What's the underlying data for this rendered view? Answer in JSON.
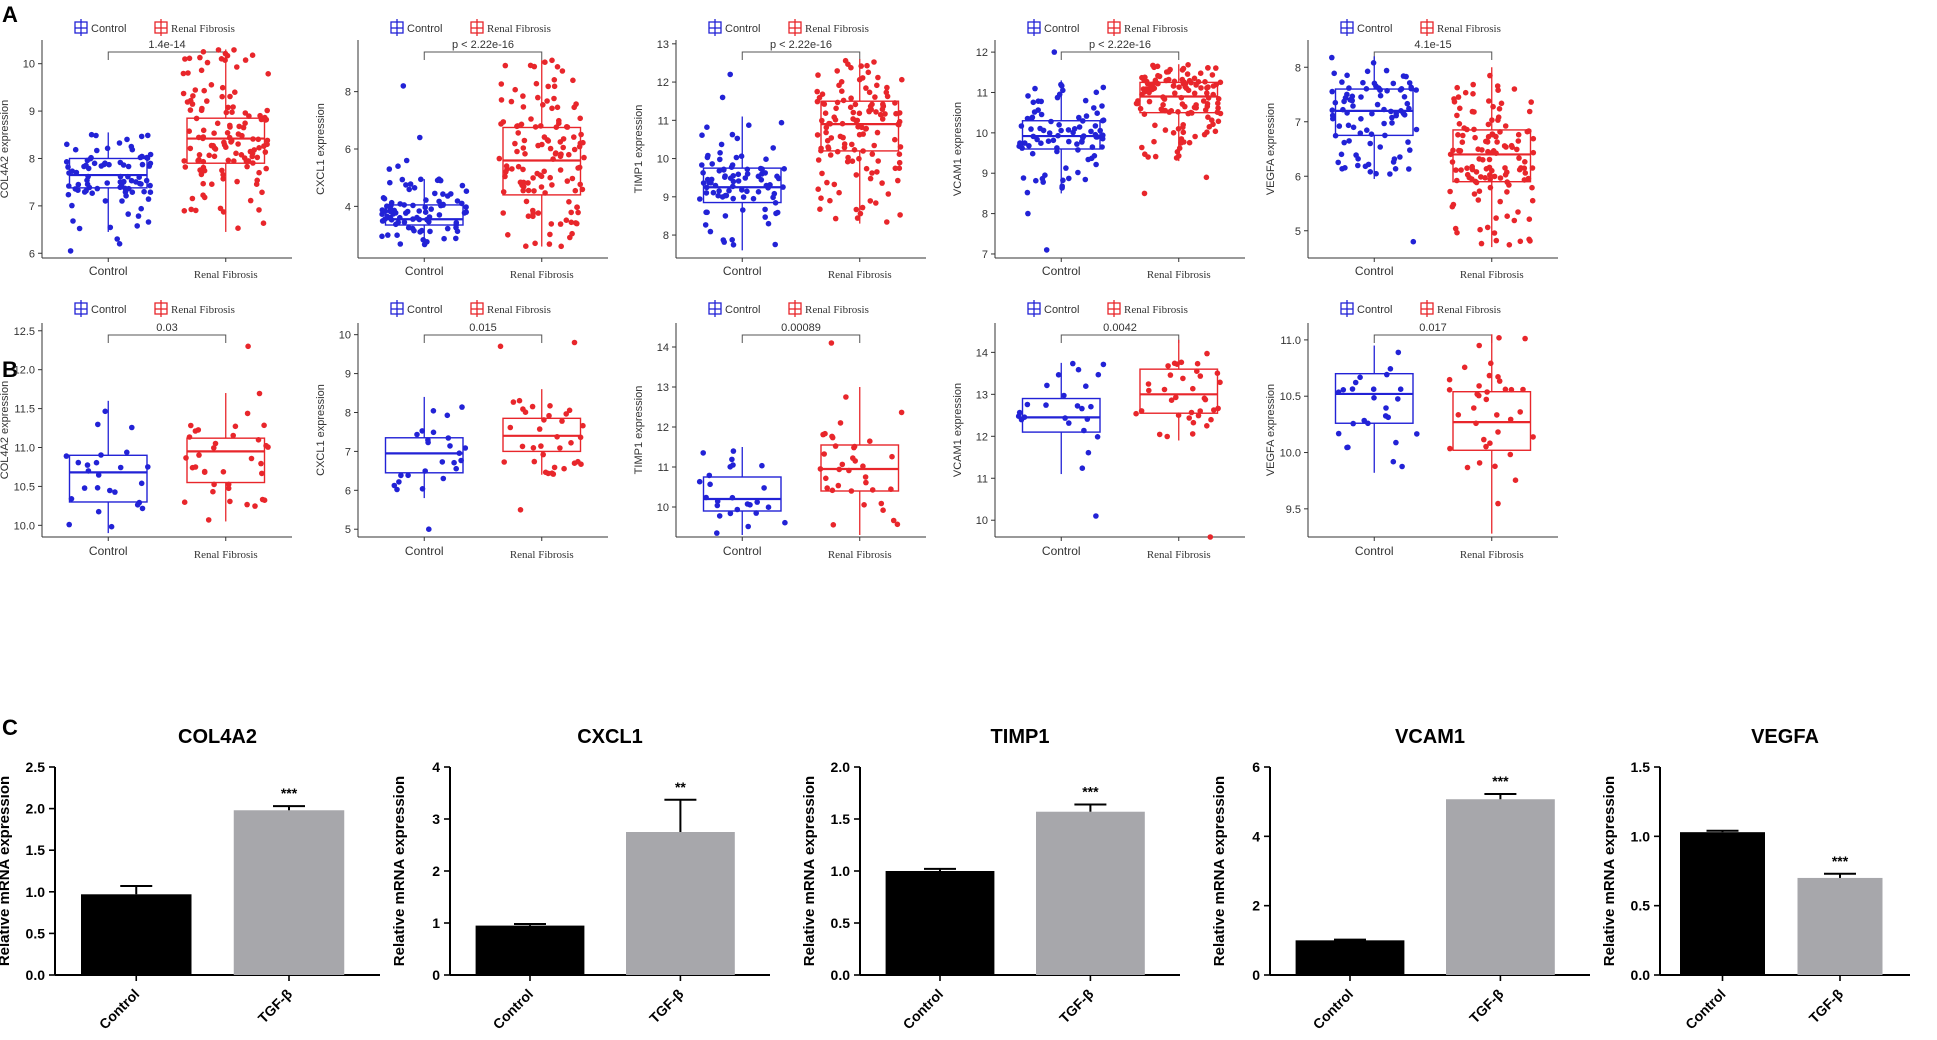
{
  "panel_labels": [
    "A",
    "B",
    "C"
  ],
  "colors": {
    "control": "#2222d6",
    "fibrosis": "#e8262b",
    "bar_control": "#000000",
    "bar_tgf": "#a7a7ab",
    "axis": "#333333"
  },
  "chart_data": [
    {
      "type": "box",
      "panel": "A",
      "gene": "COL4A2",
      "ylabel": "COL4A2 expression",
      "legend": [
        "Control",
        "Renal Fibrosis"
      ],
      "categories": [
        "Control",
        "Renal Fibrosis"
      ],
      "pvalue": "1.4e-14",
      "ylim": [
        5.9,
        10.5
      ],
      "yticks": [
        6,
        7,
        8,
        9,
        10
      ],
      "series": [
        {
          "name": "Control",
          "n": 90,
          "q1": 7.38,
          "median": 7.65,
          "q3": 8.0,
          "wlo": 6.45,
          "whi": 8.55,
          "outliers": [
            6.3,
            6.2,
            6.05
          ]
        },
        {
          "name": "Renal Fibrosis",
          "n": 130,
          "q1": 7.9,
          "median": 8.42,
          "q3": 8.85,
          "wlo": 6.45,
          "whi": 10.3,
          "outliers": []
        }
      ]
    },
    {
      "type": "box",
      "panel": "A",
      "gene": "CXCL1",
      "ylabel": "CXCL1 expression",
      "legend": [
        "Control",
        "Renal Fibrosis"
      ],
      "categories": [
        "Control",
        "Renal Fibrosis"
      ],
      "pvalue": "p < 2.22e-16",
      "ylim": [
        2.2,
        9.8
      ],
      "yticks": [
        4,
        6,
        8
      ],
      "series": [
        {
          "name": "Control",
          "n": 90,
          "q1": 3.35,
          "median": 3.55,
          "q3": 4.05,
          "wlo": 2.65,
          "whi": 4.95,
          "outliers": [
            8.2,
            6.4,
            5.6,
            5.4,
            5.3
          ]
        },
        {
          "name": "Renal Fibrosis",
          "n": 130,
          "q1": 4.4,
          "median": 5.6,
          "q3": 6.75,
          "wlo": 2.6,
          "whi": 9.1,
          "outliers": []
        }
      ]
    },
    {
      "type": "box",
      "panel": "A",
      "gene": "TIMP1",
      "ylabel": "TIMP1 expression",
      "legend": [
        "Control",
        "Renal Fibrosis"
      ],
      "categories": [
        "Control",
        "Renal Fibrosis"
      ],
      "pvalue": "p < 2.22e-16",
      "ylim": [
        7.4,
        13.1
      ],
      "yticks": [
        8,
        9,
        10,
        11,
        12,
        13
      ],
      "series": [
        {
          "name": "Control",
          "n": 90,
          "q1": 8.85,
          "median": 9.25,
          "q3": 9.75,
          "wlo": 7.6,
          "whi": 11.1,
          "outliers": [
            12.2,
            11.6
          ]
        },
        {
          "name": "Renal Fibrosis",
          "n": 130,
          "q1": 10.2,
          "median": 10.9,
          "q3": 11.5,
          "wlo": 8.3,
          "whi": 12.6,
          "outliers": []
        }
      ]
    },
    {
      "type": "box",
      "panel": "A",
      "gene": "VCAM1",
      "ylabel": "VCAM1 expression",
      "legend": [
        "Control",
        "Renal Fibrosis"
      ],
      "categories": [
        "Control",
        "Renal Fibrosis"
      ],
      "pvalue": "p < 2.22e-16",
      "ylim": [
        6.9,
        12.3
      ],
      "yticks": [
        7,
        8,
        9,
        10,
        11,
        12
      ],
      "series": [
        {
          "name": "Control",
          "n": 90,
          "q1": 9.6,
          "median": 9.92,
          "q3": 10.3,
          "wlo": 8.5,
          "whi": 11.3,
          "outliers": [
            7.1,
            8.0,
            12.0
          ]
        },
        {
          "name": "Renal Fibrosis",
          "n": 130,
          "q1": 10.5,
          "median": 10.9,
          "q3": 11.25,
          "wlo": 9.3,
          "whi": 11.7,
          "outliers": [
            8.5,
            8.9
          ]
        }
      ]
    },
    {
      "type": "box",
      "panel": "A",
      "gene": "VEGFA",
      "ylabel": "VEGFA expression",
      "legend": [
        "Control",
        "Renal Fibrosis"
      ],
      "categories": [
        "Control",
        "Renal Fibrosis"
      ],
      "pvalue": "4.1e-15",
      "ylim": [
        4.5,
        8.5
      ],
      "yticks": [
        5,
        6,
        7,
        8
      ],
      "series": [
        {
          "name": "Control",
          "n": 90,
          "q1": 6.75,
          "median": 7.2,
          "q3": 7.6,
          "wlo": 5.95,
          "whi": 8.2,
          "outliers": [
            4.8
          ]
        },
        {
          "name": "Renal Fibrosis",
          "n": 130,
          "q1": 5.9,
          "median": 6.4,
          "q3": 6.85,
          "wlo": 4.7,
          "whi": 8.0,
          "outliers": []
        }
      ]
    },
    {
      "type": "box",
      "panel": "B",
      "gene": "COL4A2",
      "ylabel": "COL4A2 expression",
      "legend": [
        "Control",
        "Renal Fibrosis"
      ],
      "categories": [
        "Control",
        "Renal Fibrosis"
      ],
      "pvalue": "0.03",
      "ylim": [
        9.85,
        12.6
      ],
      "yticks": [
        10.0,
        10.5,
        11.0,
        11.5,
        12.0,
        12.5
      ],
      "series": [
        {
          "name": "Control",
          "n": 25,
          "q1": 10.3,
          "median": 10.68,
          "q3": 10.9,
          "wlo": 9.9,
          "whi": 11.6,
          "outliers": []
        },
        {
          "name": "Renal Fibrosis",
          "n": 36,
          "q1": 10.55,
          "median": 10.95,
          "q3": 11.12,
          "wlo": 10.05,
          "whi": 11.7,
          "outliers": [
            12.3
          ]
        }
      ]
    },
    {
      "type": "box",
      "panel": "B",
      "gene": "CXCL1",
      "ylabel": "CXCL1 expression",
      "legend": [
        "Control",
        "Renal Fibrosis"
      ],
      "categories": [
        "Control",
        "Renal Fibrosis"
      ],
      "pvalue": "0.015",
      "ylim": [
        4.8,
        10.3
      ],
      "yticks": [
        5,
        6,
        7,
        8,
        9,
        10
      ],
      "series": [
        {
          "name": "Control",
          "n": 25,
          "q1": 6.45,
          "median": 6.95,
          "q3": 7.35,
          "wlo": 5.8,
          "whi": 8.4,
          "outliers": [
            5.0
          ]
        },
        {
          "name": "Renal Fibrosis",
          "n": 36,
          "q1": 7.0,
          "median": 7.4,
          "q3": 7.85,
          "wlo": 6.4,
          "whi": 8.6,
          "outliers": [
            5.5,
            9.8,
            9.7
          ]
        }
      ]
    },
    {
      "type": "box",
      "panel": "B",
      "gene": "TIMP1",
      "ylabel": "TIMP1 expression",
      "legend": [
        "Control",
        "Renal Fibrosis"
      ],
      "categories": [
        "Control",
        "Renal Fibrosis"
      ],
      "pvalue": "0.00089",
      "ylim": [
        9.25,
        14.6
      ],
      "yticks": [
        10,
        11,
        12,
        13,
        14
      ],
      "series": [
        {
          "name": "Control",
          "n": 25,
          "q1": 9.9,
          "median": 10.2,
          "q3": 10.75,
          "wlo": 9.3,
          "whi": 11.5,
          "outliers": []
        },
        {
          "name": "Renal Fibrosis",
          "n": 36,
          "q1": 10.4,
          "median": 10.95,
          "q3": 11.55,
          "wlo": 9.3,
          "whi": 13.0,
          "outliers": [
            14.1
          ]
        }
      ]
    },
    {
      "type": "box",
      "panel": "B",
      "gene": "VCAM1",
      "ylabel": "VCAM1 expression",
      "legend": [
        "Control",
        "Renal Fibrosis"
      ],
      "categories": [
        "Control",
        "Renal Fibrosis"
      ],
      "pvalue": "0.0042",
      "ylim": [
        9.6,
        14.7
      ],
      "yticks": [
        10,
        11,
        12,
        13,
        14
      ],
      "series": [
        {
          "name": "Control",
          "n": 25,
          "q1": 12.1,
          "median": 12.45,
          "q3": 12.9,
          "wlo": 11.1,
          "whi": 13.75,
          "outliers": [
            10.1
          ]
        },
        {
          "name": "Renal Fibrosis",
          "n": 36,
          "q1": 12.55,
          "median": 13.0,
          "q3": 13.6,
          "wlo": 11.9,
          "whi": 14.3,
          "outliers": [
            9.6
          ]
        }
      ]
    },
    {
      "type": "box",
      "panel": "B",
      "gene": "VEGFA",
      "ylabel": "VEGFA expression",
      "legend": [
        "Control",
        "Renal Fibrosis"
      ],
      "categories": [
        "Control",
        "Renal Fibrosis"
      ],
      "pvalue": "0.017",
      "ylim": [
        9.25,
        11.15
      ],
      "yticks": [
        9.5,
        10.0,
        10.5,
        11.0
      ],
      "series": [
        {
          "name": "Control",
          "n": 25,
          "q1": 10.26,
          "median": 10.52,
          "q3": 10.7,
          "wlo": 9.82,
          "whi": 10.95,
          "outliers": []
        },
        {
          "name": "Renal Fibrosis",
          "n": 36,
          "q1": 10.02,
          "median": 10.27,
          "q3": 10.54,
          "wlo": 9.28,
          "whi": 11.05,
          "outliers": []
        }
      ]
    },
    {
      "type": "bar",
      "panel": "C",
      "title": "COL4A2",
      "ylabel": "Relative mRNA expression",
      "categories": [
        "Control",
        "TGF-β"
      ],
      "values": [
        0.97,
        1.98
      ],
      "errors": [
        0.1,
        0.05
      ],
      "significance": "***",
      "ylim": [
        0,
        2.5
      ],
      "yticks": [
        "0.0",
        "0.5",
        "1.0",
        "1.5",
        "2.0",
        "2.5"
      ]
    },
    {
      "type": "bar",
      "panel": "C",
      "title": "CXCL1",
      "ylabel": "Relative mRNA expression",
      "categories": [
        "Control",
        "TGF-β"
      ],
      "values": [
        0.95,
        2.75
      ],
      "errors": [
        0.03,
        0.62
      ],
      "significance": "**",
      "ylim": [
        0,
        4
      ],
      "yticks": [
        "0",
        "1",
        "2",
        "3",
        "4"
      ]
    },
    {
      "type": "bar",
      "panel": "C",
      "title": "TIMP1",
      "ylabel": "Relative mRNA expression",
      "categories": [
        "Control",
        "TGF-β"
      ],
      "values": [
        1.0,
        1.57
      ],
      "errors": [
        0.02,
        0.07
      ],
      "significance": "***",
      "ylim": [
        0,
        2.0
      ],
      "yticks": [
        "0.0",
        "0.5",
        "1.0",
        "1.5",
        "2.0"
      ]
    },
    {
      "type": "bar",
      "panel": "C",
      "title": "VCAM1",
      "ylabel": "Relative mRNA expression",
      "categories": [
        "Control",
        "TGF-β"
      ],
      "values": [
        1.0,
        5.07
      ],
      "errors": [
        0.02,
        0.15
      ],
      "significance": "***",
      "ylim": [
        0,
        6
      ],
      "yticks": [
        "0",
        "2",
        "4",
        "6"
      ]
    },
    {
      "type": "bar",
      "panel": "C",
      "title": "VEGFA",
      "ylabel": "Relative mRNA expression",
      "categories": [
        "Control",
        "TGF-β"
      ],
      "values": [
        1.03,
        0.7
      ],
      "errors": [
        0.01,
        0.03
      ],
      "significance": "***",
      "ylim": [
        0,
        1.5
      ],
      "yticks": [
        "0.0",
        "0.5",
        "1.0",
        "1.5"
      ]
    }
  ]
}
